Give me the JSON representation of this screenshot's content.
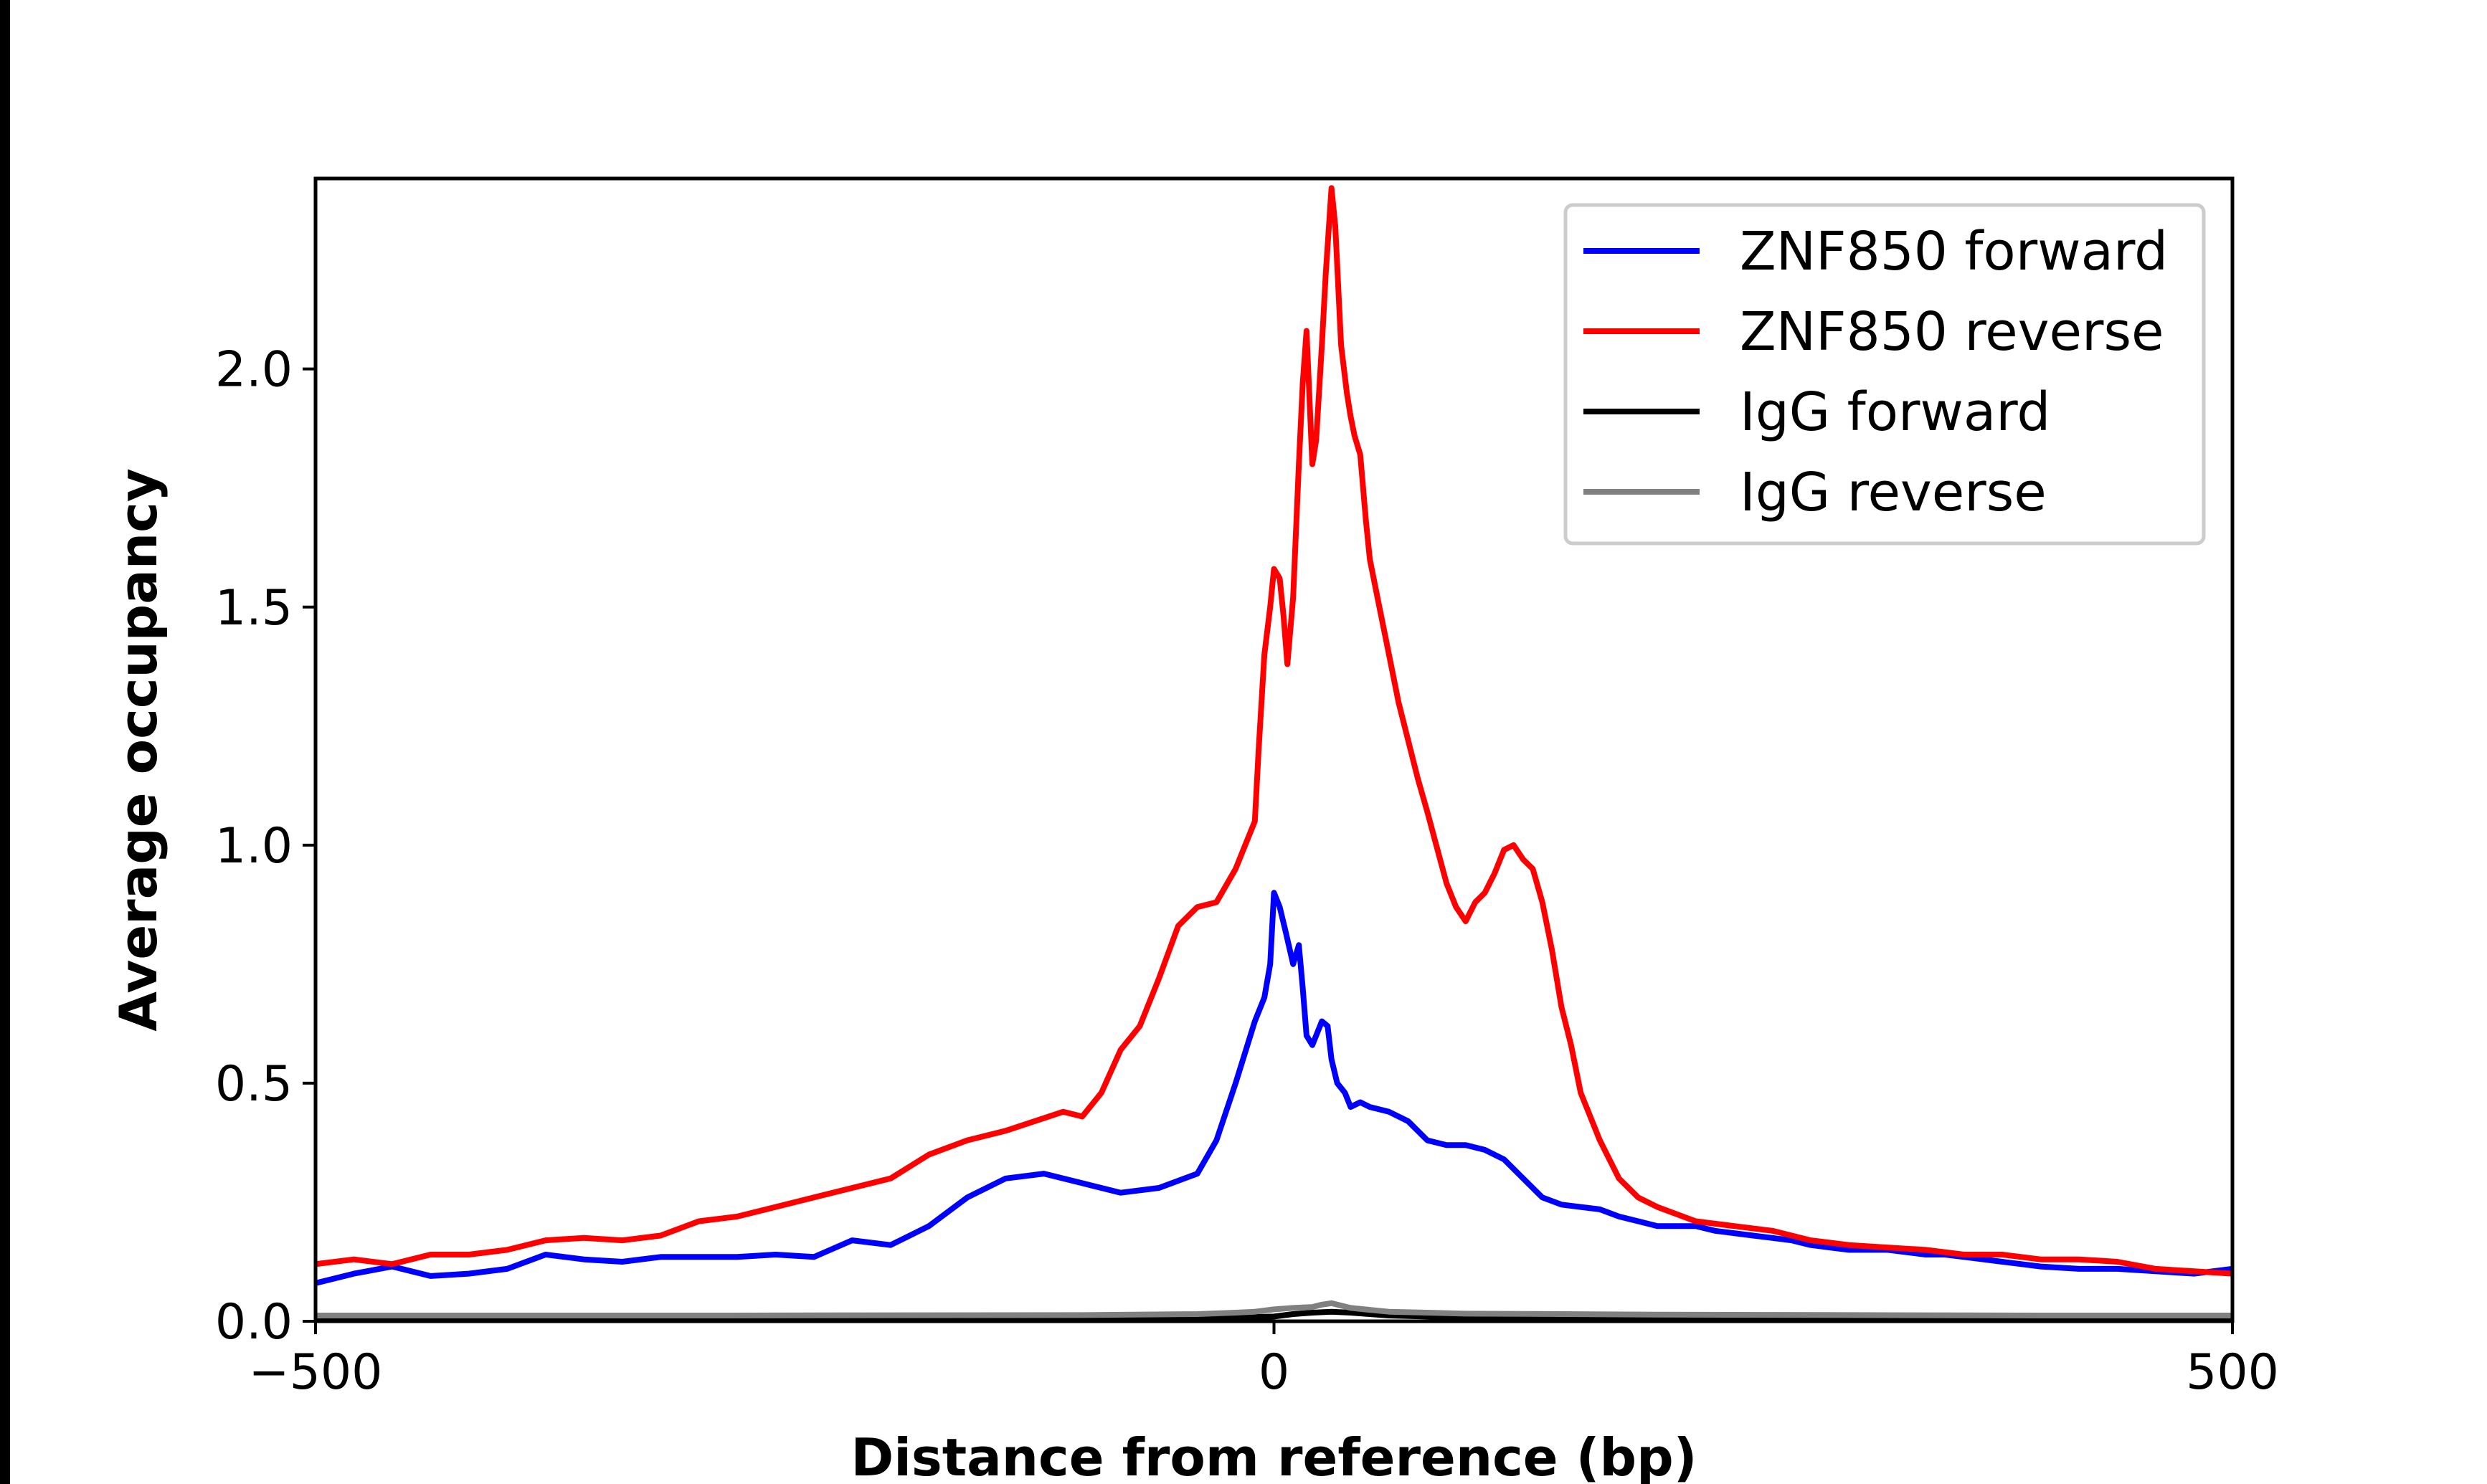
{
  "chart_data": {
    "type": "line",
    "xlabel": "Distance from reference (bp)",
    "ylabel": "Average occupancy",
    "xlim": [
      -500,
      500
    ],
    "ylim": [
      0,
      2.4
    ],
    "xticks": [
      -500,
      0,
      500
    ],
    "xtick_labels": [
      "−500",
      "0",
      "500"
    ],
    "yticks": [
      0.0,
      0.5,
      1.0,
      1.5,
      2.0
    ],
    "ytick_labels": [
      "0.0",
      "0.5",
      "1.0",
      "1.5",
      "2.0"
    ],
    "grid": false,
    "legend_position": "top-right",
    "series": [
      {
        "name": "ZNF850 forward",
        "color": "#0000ff",
        "x": [
          -500,
          -480,
          -460,
          -440,
          -420,
          -400,
          -380,
          -360,
          -340,
          -320,
          -300,
          -280,
          -260,
          -240,
          -220,
          -200,
          -180,
          -160,
          -140,
          -120,
          -100,
          -80,
          -60,
          -40,
          -30,
          -20,
          -10,
          -5,
          -2,
          0,
          3,
          6,
          10,
          13,
          15,
          17,
          20,
          22,
          25,
          28,
          30,
          33,
          37,
          40,
          45,
          50,
          60,
          70,
          80,
          90,
          100,
          110,
          120,
          130,
          140,
          150,
          160,
          170,
          180,
          190,
          200,
          210,
          220,
          230,
          240,
          250,
          260,
          270,
          280,
          290,
          300,
          310,
          320,
          330,
          340,
          350,
          360,
          370,
          380,
          390,
          400,
          420,
          440,
          460,
          480,
          500
        ],
        "values": [
          0.08,
          0.1,
          0.115,
          0.095,
          0.1,
          0.11,
          0.14,
          0.13,
          0.125,
          0.135,
          0.135,
          0.135,
          0.14,
          0.135,
          0.17,
          0.16,
          0.2,
          0.26,
          0.3,
          0.31,
          0.29,
          0.27,
          0.28,
          0.31,
          0.38,
          0.5,
          0.63,
          0.68,
          0.75,
          0.9,
          0.87,
          0.82,
          0.75,
          0.79,
          0.7,
          0.6,
          0.58,
          0.6,
          0.63,
          0.62,
          0.55,
          0.5,
          0.48,
          0.45,
          0.46,
          0.45,
          0.44,
          0.42,
          0.38,
          0.37,
          0.37,
          0.36,
          0.34,
          0.3,
          0.26,
          0.245,
          0.24,
          0.235,
          0.22,
          0.21,
          0.2,
          0.2,
          0.2,
          0.19,
          0.185,
          0.18,
          0.175,
          0.17,
          0.16,
          0.155,
          0.15,
          0.15,
          0.15,
          0.145,
          0.14,
          0.14,
          0.135,
          0.13,
          0.125,
          0.12,
          0.115,
          0.11,
          0.11,
          0.105,
          0.1,
          0.11
        ]
      },
      {
        "name": "ZNF850 reverse",
        "color": "#ff0000",
        "x": [
          -500,
          -480,
          -460,
          -440,
          -420,
          -400,
          -380,
          -360,
          -340,
          -320,
          -300,
          -280,
          -260,
          -240,
          -220,
          -200,
          -180,
          -160,
          -140,
          -110,
          -100,
          -90,
          -80,
          -70,
          -60,
          -50,
          -40,
          -30,
          -20,
          -15,
          -10,
          -8,
          -5,
          -2,
          0,
          3,
          5,
          7,
          10,
          13,
          15,
          17,
          20,
          22,
          25,
          27,
          30,
          32,
          35,
          38,
          40,
          42,
          45,
          48,
          50,
          55,
          60,
          65,
          70,
          75,
          80,
          90,
          95,
          100,
          105,
          110,
          115,
          120,
          125,
          130,
          135,
          140,
          145,
          150,
          155,
          160,
          170,
          180,
          190,
          200,
          220,
          240,
          260,
          280,
          300,
          320,
          340,
          360,
          380,
          400,
          420,
          440,
          460,
          480,
          500
        ],
        "values": [
          0.12,
          0.13,
          0.12,
          0.14,
          0.14,
          0.15,
          0.17,
          0.175,
          0.17,
          0.18,
          0.21,
          0.22,
          0.24,
          0.26,
          0.28,
          0.3,
          0.35,
          0.38,
          0.4,
          0.44,
          0.43,
          0.48,
          0.57,
          0.62,
          0.72,
          0.83,
          0.87,
          0.88,
          0.95,
          1.0,
          1.05,
          1.2,
          1.4,
          1.5,
          1.58,
          1.56,
          1.48,
          1.38,
          1.52,
          1.8,
          1.97,
          2.08,
          1.8,
          1.85,
          2.05,
          2.2,
          2.38,
          2.3,
          2.05,
          1.95,
          1.9,
          1.86,
          1.82,
          1.68,
          1.6,
          1.5,
          1.4,
          1.3,
          1.22,
          1.14,
          1.07,
          0.92,
          0.87,
          0.84,
          0.88,
          0.9,
          0.94,
          0.99,
          1.0,
          0.97,
          0.95,
          0.88,
          0.78,
          0.66,
          0.58,
          0.48,
          0.38,
          0.3,
          0.26,
          0.24,
          0.21,
          0.2,
          0.19,
          0.17,
          0.16,
          0.155,
          0.15,
          0.14,
          0.14,
          0.13,
          0.13,
          0.125,
          0.11,
          0.105,
          0.1
        ]
      },
      {
        "name": "IgG forward",
        "color": "#000000",
        "x": [
          -500,
          -300,
          -100,
          -40,
          -20,
          0,
          10,
          20,
          30,
          40,
          50,
          60,
          80,
          100,
          150,
          200,
          300,
          400,
          500
        ],
        "values": [
          0.005,
          0.005,
          0.005,
          0.006,
          0.008,
          0.01,
          0.015,
          0.018,
          0.02,
          0.018,
          0.015,
          0.012,
          0.01,
          0.008,
          0.006,
          0.005,
          0.005,
          0.005,
          0.005
        ]
      },
      {
        "name": "IgG reverse",
        "color": "#808080",
        "x": [
          -500,
          -300,
          -100,
          -40,
          -20,
          -10,
          0,
          10,
          20,
          25,
          30,
          35,
          40,
          50,
          60,
          80,
          100,
          150,
          200,
          300,
          400,
          500
        ],
        "values": [
          0.012,
          0.012,
          0.013,
          0.015,
          0.018,
          0.02,
          0.025,
          0.028,
          0.03,
          0.035,
          0.038,
          0.033,
          0.028,
          0.024,
          0.02,
          0.018,
          0.016,
          0.015,
          0.014,
          0.013,
          0.012,
          0.012
        ]
      }
    ]
  }
}
